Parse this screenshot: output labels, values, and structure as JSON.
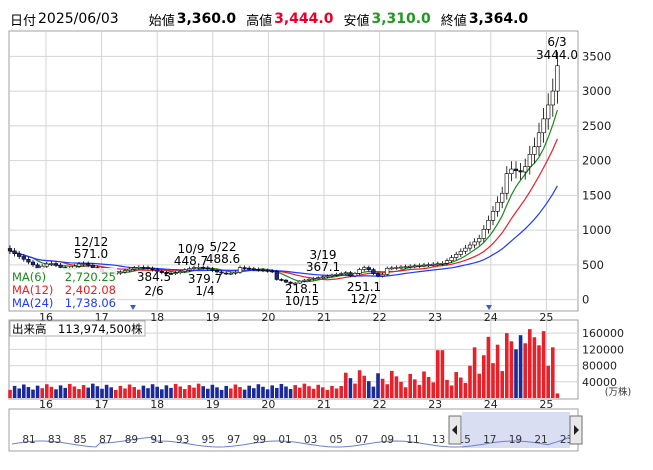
{
  "header": {
    "date_label": "日付",
    "date_value": "2025/06/03",
    "open_label": "始値",
    "open_value": "3,360.0",
    "high_label": "高値",
    "high_value": "3,444.0",
    "low_label": "安値",
    "low_value": "3,310.0",
    "close_label": "終値",
    "close_value": "3,364.0",
    "high_color": "#e8002a",
    "low_color": "#1f9a1f"
  },
  "chart_data": [
    {
      "type": "candlestick",
      "x_ticks": [
        "16",
        "17",
        "18",
        "19",
        "20",
        "21",
        "22",
        "23",
        "24",
        "25"
      ],
      "y_ticks": [
        0,
        500,
        1000,
        1500,
        2000,
        2500,
        3000,
        3500
      ],
      "ylim": [
        -150,
        3850
      ],
      "grid": true,
      "series": [
        {
          "name": "MA(6)",
          "value": "2,720.25",
          "color": "#1a8a1a"
        },
        {
          "name": "MA(12)",
          "value": "2,402.08",
          "color": "#e8202a"
        },
        {
          "name": "MA(24)",
          "value": "1,738.06",
          "color": "#1f3cff"
        }
      ],
      "legend_position": "bottom-left",
      "annotations": [
        {
          "date": "12/12",
          "value": "571.0"
        },
        {
          "value": "384.5",
          "date": "2/6"
        },
        {
          "date": "10/9",
          "value": "448.7"
        },
        {
          "value": "379.7",
          "date": "1/4"
        },
        {
          "date": "5/22",
          "value": "488.6"
        },
        {
          "value": "218.1",
          "date": "10/15"
        },
        {
          "date": "3/19",
          "value": "367.1"
        },
        {
          "value": "251.1",
          "date": "12/2"
        },
        {
          "date": "6/3",
          "value": "3444.0"
        }
      ]
    },
    {
      "type": "bar",
      "title": "出来高",
      "latest_volume": "113,974,500株",
      "y_ticks_labels": [
        "160000",
        "120000",
        "80000",
        "40000"
      ],
      "y_ticks": [
        160000,
        120000,
        80000,
        40000
      ],
      "unit": "(万株)",
      "ylim": [
        0,
        190000
      ],
      "x_ticks": [
        "16",
        "17",
        "18",
        "19",
        "20",
        "21",
        "22",
        "23",
        "24",
        "25"
      ]
    }
  ],
  "navigator": {
    "years": [
      "81",
      "83",
      "85",
      "87",
      "89",
      "91",
      "93",
      "95",
      "97",
      "99",
      "01",
      "03",
      "05",
      "07",
      "09",
      "11",
      "13",
      "15",
      "17",
      "19",
      "21",
      "23"
    ]
  },
  "colors": {
    "up": "#ffffff",
    "down": "#1a2a9a",
    "volume_up": "#e8202a",
    "volume_down": "#1a2a9a"
  }
}
